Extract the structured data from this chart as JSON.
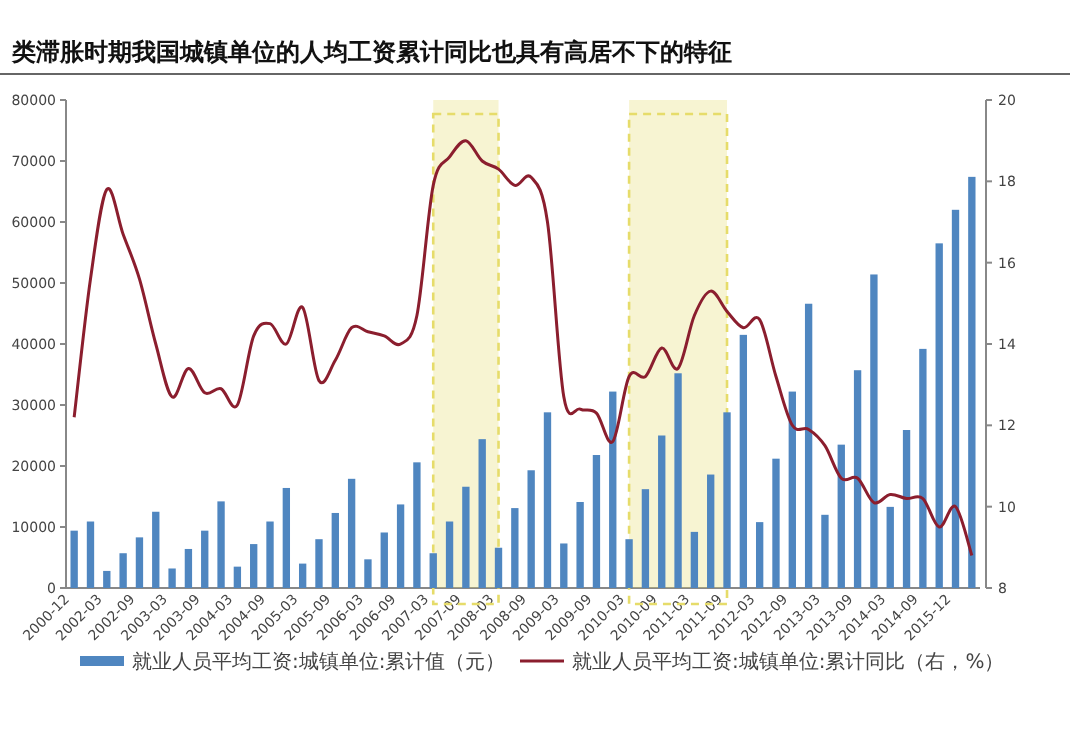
{
  "chart_data": {
    "type": "bar",
    "title": "类滞胀时期我国城镇单位的人均工资累计同比也具有高居不下的特征",
    "categories": [
      "2000-12",
      null,
      "2002-03",
      null,
      "2002-09",
      null,
      "2003-03",
      null,
      "2003-09",
      null,
      "2004-03",
      null,
      "2004-09",
      null,
      "2005-03",
      null,
      "2005-09",
      null,
      "2006-03",
      null,
      "2006-09",
      null,
      "2007-03",
      null,
      "2007-09",
      null,
      "2008-03",
      null,
      "2008-09",
      null,
      "2009-03",
      null,
      "2009-09",
      null,
      "2010-03",
      null,
      "2010-09",
      null,
      "2011-03",
      null,
      "2011-09",
      null,
      "2012-03",
      null,
      "2012-09",
      null,
      "2013-03",
      null,
      "2013-09",
      null,
      "2014-03",
      null,
      "2014-09",
      null,
      "2015-12",
      null
    ],
    "series": [
      {
        "name": "就业人员平均工资:城镇单位:累计值（元）",
        "color": "#4f86c0",
        "values": [
          9400,
          10900,
          2800,
          5700,
          8300,
          12500,
          3200,
          6400,
          9400,
          14200,
          3500,
          7200,
          10900,
          16400,
          4000,
          8000,
          12300,
          17900,
          4700,
          9100,
          13700,
          20600,
          5700,
          10900,
          16600,
          24400,
          6600,
          13100,
          19300,
          28800,
          7300,
          14100,
          21800,
          32200,
          8000,
          16200,
          25000,
          35200,
          9200,
          18600,
          28800,
          41500,
          10800,
          21200,
          32200,
          46600,
          12000,
          23500,
          35700,
          51400,
          13300,
          25900,
          39200,
          56500,
          62000,
          67400
        ]
      },
      {
        "name": "就业人员平均工资:城镇单位:累计同比（右，%）",
        "type": "line",
        "axis": "y2",
        "color": "#8b1e2e",
        "values": [
          12.2,
          15.6,
          17.8,
          16.7,
          15.6,
          14.0,
          12.7,
          13.4,
          12.8,
          12.9,
          12.5,
          14.2,
          14.5,
          14.0,
          14.9,
          13.1,
          13.6,
          14.4,
          14.3,
          14.2,
          14.0,
          14.7,
          17.9,
          18.6,
          19.0,
          18.5,
          18.3,
          17.9,
          18.1,
          17.0,
          12.7,
          12.4,
          12.3,
          11.6,
          13.2,
          13.2,
          13.9,
          13.4,
          14.7,
          15.3,
          14.8,
          14.4,
          14.6,
          13.2,
          12.0,
          11.9,
          11.5,
          10.7,
          10.7,
          10.1,
          10.3,
          10.2,
          10.2,
          9.5,
          10.0,
          8.8
        ]
      }
    ],
    "ylim": [
      0,
      80000
    ],
    "yticks": [
      0,
      10000,
      20000,
      30000,
      40000,
      50000,
      60000,
      70000,
      80000
    ],
    "y2lim": [
      8,
      20
    ],
    "y2ticks": [
      8,
      10,
      12,
      14,
      16,
      18,
      20
    ],
    "legend": "bottom",
    "bands": [
      {
        "axis": "x",
        "from": "2007-03",
        "to": "2008-03",
        "color": "#e6dc6a"
      },
      {
        "axis": "x",
        "from": "2010-03",
        "to": "2011-09",
        "color": "#e6dc6a"
      }
    ]
  }
}
